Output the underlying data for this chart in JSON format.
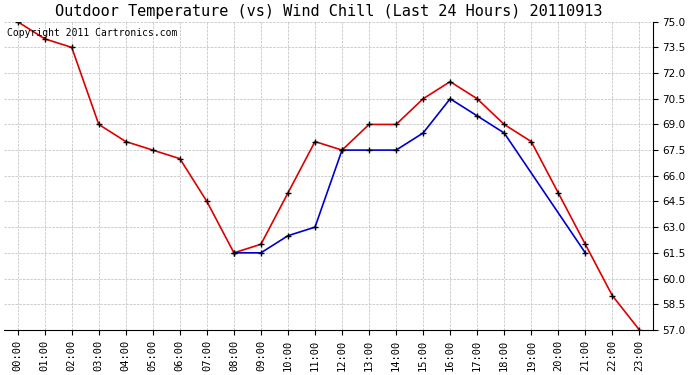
{
  "title": "Outdoor Temperature (vs) Wind Chill (Last 24 Hours) 20110913",
  "copyright_text": "Copyright 2011 Cartronics.com",
  "hours": [
    "00:00",
    "01:00",
    "02:00",
    "03:00",
    "04:00",
    "05:00",
    "06:00",
    "07:00",
    "08:00",
    "09:00",
    "10:00",
    "11:00",
    "12:00",
    "13:00",
    "14:00",
    "15:00",
    "16:00",
    "17:00",
    "18:00",
    "19:00",
    "20:00",
    "21:00",
    "22:00",
    "23:00"
  ],
  "temp_red": [
    75.0,
    74.0,
    73.5,
    69.0,
    68.0,
    67.5,
    67.0,
    64.5,
    61.5,
    62.0,
    65.0,
    68.0,
    67.5,
    69.0,
    69.0,
    70.5,
    71.5,
    70.5,
    69.0,
    68.0,
    65.0,
    62.0,
    59.0,
    57.0
  ],
  "wind_chill_blue": [
    null,
    null,
    null,
    null,
    null,
    null,
    null,
    null,
    61.5,
    61.5,
    62.5,
    63.0,
    67.5,
    67.5,
    67.5,
    68.5,
    70.5,
    69.5,
    68.5,
    null,
    null,
    61.5,
    null,
    null
  ],
  "ylim_min": 57.0,
  "ylim_max": 75.0,
  "ytick_interval": 1.5,
  "background_color": "#ffffff",
  "plot_bg_color": "#ffffff",
  "grid_color": "#bbbbbb",
  "red_line_color": "#dd0000",
  "blue_line_color": "#0000cc",
  "marker_color": "#000000",
  "title_fontsize": 11,
  "copyright_fontsize": 7,
  "tick_fontsize": 7.5,
  "figwidth": 6.9,
  "figheight": 3.75,
  "dpi": 100
}
